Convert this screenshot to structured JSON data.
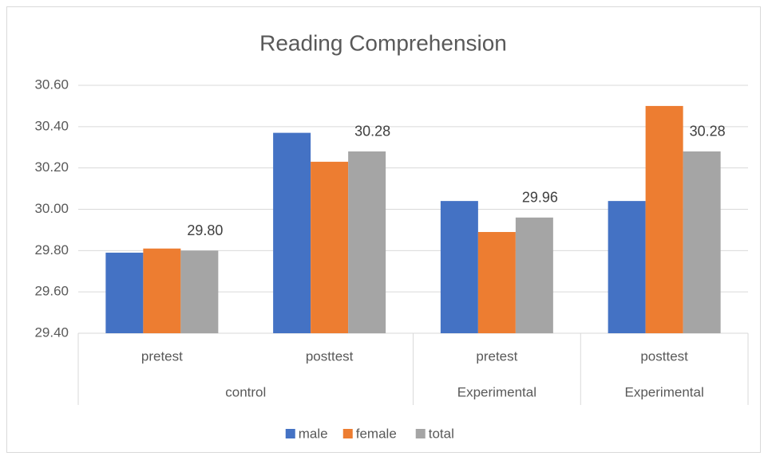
{
  "chart_data": {
    "type": "bar",
    "title": "Reading Comprehension",
    "categories": [
      "pretest",
      "posttest",
      "pretest",
      "posttest"
    ],
    "groups": [
      {
        "label": "control",
        "categories": [
          "pretest",
          "posttest"
        ]
      },
      {
        "label": "Experimental",
        "categories": [
          "pretest"
        ]
      },
      {
        "label": "Experimental",
        "categories": [
          "posttest"
        ]
      }
    ],
    "series": [
      {
        "name": "male",
        "color": "#4472c4",
        "values": [
          29.79,
          30.37,
          30.04,
          30.04
        ]
      },
      {
        "name": "female",
        "color": "#ed7d31",
        "values": [
          29.81,
          30.23,
          29.89,
          30.5
        ]
      },
      {
        "name": "total",
        "color": "#a5a5a5",
        "values": [
          29.8,
          30.28,
          29.96,
          30.28
        ],
        "value_labels": [
          "29.80",
          "30.28",
          "29.96",
          "30.28"
        ]
      }
    ],
    "ylim": [
      29.4,
      30.6
    ],
    "yticks": [
      {
        "value": 29.4,
        "label": "29.40"
      },
      {
        "value": 29.6,
        "label": "29.60"
      },
      {
        "value": 29.8,
        "label": "29.80"
      },
      {
        "value": 30.0,
        "label": "30.00"
      },
      {
        "value": 30.2,
        "label": "30.20"
      },
      {
        "value": 30.4,
        "label": "30.40"
      },
      {
        "value": 30.6,
        "label": "30.60"
      }
    ],
    "grid": true,
    "legend": "bottom"
  }
}
